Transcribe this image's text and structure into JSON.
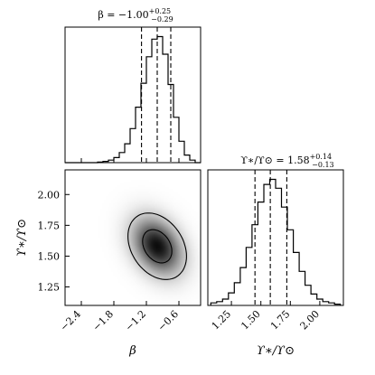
{
  "chart_data": [
    {
      "type": "histogram",
      "title": {
        "prefix": "β = −1.00",
        "sup": "+0.25",
        "sub": "−0.29"
      },
      "x": [
        -2.65,
        -2.55,
        -2.45,
        -2.35,
        -2.25,
        -2.15,
        -2.05,
        -1.95,
        -1.85,
        -1.75,
        -1.65,
        -1.55,
        -1.45,
        -1.35,
        -1.25,
        -1.15,
        -1.05,
        -0.95,
        -0.85,
        -0.75,
        -0.65,
        -0.55,
        -0.45,
        -0.35,
        -0.25
      ],
      "values": [
        0,
        0,
        0,
        0,
        0,
        0,
        0.005,
        0.01,
        0.02,
        0.04,
        0.08,
        0.15,
        0.27,
        0.44,
        0.63,
        0.84,
        0.98,
        1.0,
        0.86,
        0.62,
        0.36,
        0.17,
        0.06,
        0.02,
        0
      ],
      "quantiles": [
        -1.29,
        -1.0,
        -0.75
      ],
      "xlim": [
        -2.7,
        -0.2
      ]
    },
    {
      "type": "heatmap",
      "xlabel": "β",
      "ylabel": "ϒ∗/ϒ⊙",
      "xlim": [
        -2.7,
        -0.2
      ],
      "ylim": [
        1.1,
        2.2
      ],
      "xticks": [
        "−2.4",
        "−1.8",
        "−1.2",
        "−0.6"
      ],
      "yticks": [
        "1.25",
        "1.50",
        "1.75",
        "2.00"
      ],
      "center": [
        -1.0,
        1.58
      ],
      "sigma": [
        0.27,
        0.135
      ],
      "correlation": -0.3
    },
    {
      "type": "histogram",
      "title": {
        "prefix": "ϒ∗/ϒ⊙ = 1.58",
        "sup": "+0.14",
        "sub": "−0.13"
      },
      "xlabel": "ϒ∗/ϒ⊙",
      "x": [
        1.1,
        1.15,
        1.2,
        1.25,
        1.3,
        1.35,
        1.4,
        1.45,
        1.5,
        1.55,
        1.6,
        1.65,
        1.7,
        1.75,
        1.8,
        1.85,
        1.9,
        1.95,
        2.0,
        2.05,
        2.1,
        2.15
      ],
      "values": [
        0.02,
        0.03,
        0.05,
        0.1,
        0.18,
        0.3,
        0.46,
        0.64,
        0.82,
        0.96,
        1.0,
        0.93,
        0.78,
        0.6,
        0.42,
        0.27,
        0.16,
        0.09,
        0.05,
        0.03,
        0.02,
        0.01
      ],
      "quantiles": [
        1.45,
        1.58,
        1.72
      ],
      "xlim": [
        1.05,
        2.2
      ],
      "xticks": [
        "1.25",
        "1.50",
        "1.75",
        "2.00"
      ]
    }
  ]
}
